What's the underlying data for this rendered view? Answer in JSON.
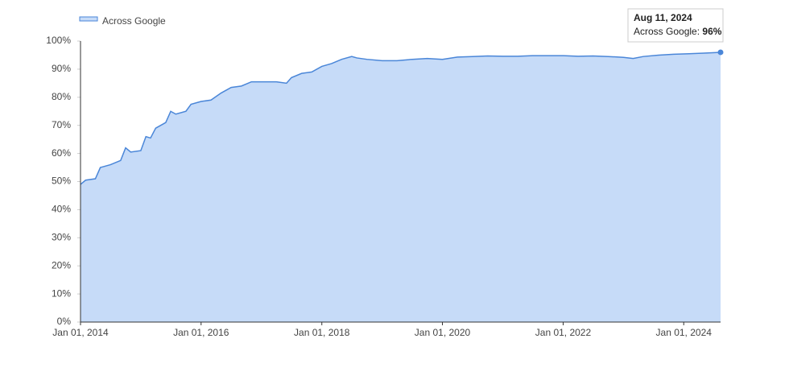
{
  "chart_data": {
    "type": "area",
    "x": [
      "2014-01-01",
      "2014-02-01",
      "2014-04-01",
      "2014-05-01",
      "2014-07-01",
      "2014-09-01",
      "2014-10-01",
      "2014-11-01",
      "2015-01-01",
      "2015-02-01",
      "2015-03-01",
      "2015-04-01",
      "2015-06-01",
      "2015-07-01",
      "2015-08-01",
      "2015-10-01",
      "2015-11-01",
      "2016-01-01",
      "2016-03-01",
      "2016-05-01",
      "2016-07-01",
      "2016-09-01",
      "2016-11-01",
      "2017-01-01",
      "2017-04-01",
      "2017-06-01",
      "2017-07-01",
      "2017-09-01",
      "2017-11-01",
      "2018-01-01",
      "2018-03-01",
      "2018-05-01",
      "2018-07-01",
      "2018-08-01",
      "2018-10-01",
      "2019-01-01",
      "2019-04-01",
      "2019-07-01",
      "2019-10-01",
      "2020-01-01",
      "2020-04-01",
      "2020-07-01",
      "2020-10-01",
      "2021-01-01",
      "2021-04-01",
      "2021-07-01",
      "2021-10-01",
      "2022-01-01",
      "2022-04-01",
      "2022-07-01",
      "2022-10-01",
      "2023-01-01",
      "2023-03-01",
      "2023-05-01",
      "2023-08-01",
      "2023-11-01",
      "2024-02-01",
      "2024-05-01",
      "2024-08-11"
    ],
    "series": [
      {
        "name": "Across Google",
        "color": "#4a86d8",
        "area_color": "#c6dbf8",
        "values": [
          49,
          50.5,
          51,
          55,
          56,
          57.5,
          62,
          60.5,
          61,
          66,
          65.5,
          69,
          71,
          75,
          74,
          75,
          77.5,
          78.5,
          79,
          81.5,
          83.5,
          84,
          85.5,
          85.5,
          85.5,
          85,
          87,
          88.5,
          89,
          91,
          92,
          93.5,
          94.5,
          94,
          93.5,
          93,
          93,
          93.5,
          93.8,
          93.5,
          94.3,
          94.5,
          94.7,
          94.6,
          94.6,
          94.8,
          94.8,
          94.8,
          94.6,
          94.7,
          94.5,
          94.2,
          93.8,
          94.5,
          95,
          95.3,
          95.5,
          95.7,
          96
        ]
      }
    ],
    "xlim": [
      "2014-01-01",
      "2024-08-11"
    ],
    "xticks": [
      {
        "value": "2014-01-01",
        "label": "Jan 01, 2014"
      },
      {
        "value": "2016-01-01",
        "label": "Jan 01, 2016"
      },
      {
        "value": "2018-01-01",
        "label": "Jan 01, 2018"
      },
      {
        "value": "2020-01-01",
        "label": "Jan 01, 2020"
      },
      {
        "value": "2022-01-01",
        "label": "Jan 01, 2022"
      },
      {
        "value": "2024-01-01",
        "label": "Jan 01, 2024"
      }
    ],
    "ylim": [
      0,
      100
    ],
    "yticks": [
      {
        "value": 0,
        "label": "0%"
      },
      {
        "value": 10,
        "label": "10%"
      },
      {
        "value": 20,
        "label": "20%"
      },
      {
        "value": 30,
        "label": "30%"
      },
      {
        "value": 40,
        "label": "40%"
      },
      {
        "value": 50,
        "label": "50%"
      },
      {
        "value": 60,
        "label": "60%"
      },
      {
        "value": 70,
        "label": "70%"
      },
      {
        "value": 80,
        "label": "80%"
      },
      {
        "value": 90,
        "label": "90%"
      },
      {
        "value": 100,
        "label": "100%"
      }
    ],
    "tooltip": {
      "title": "Aug 11, 2024",
      "label": "Across Google:",
      "value": "96%"
    }
  }
}
